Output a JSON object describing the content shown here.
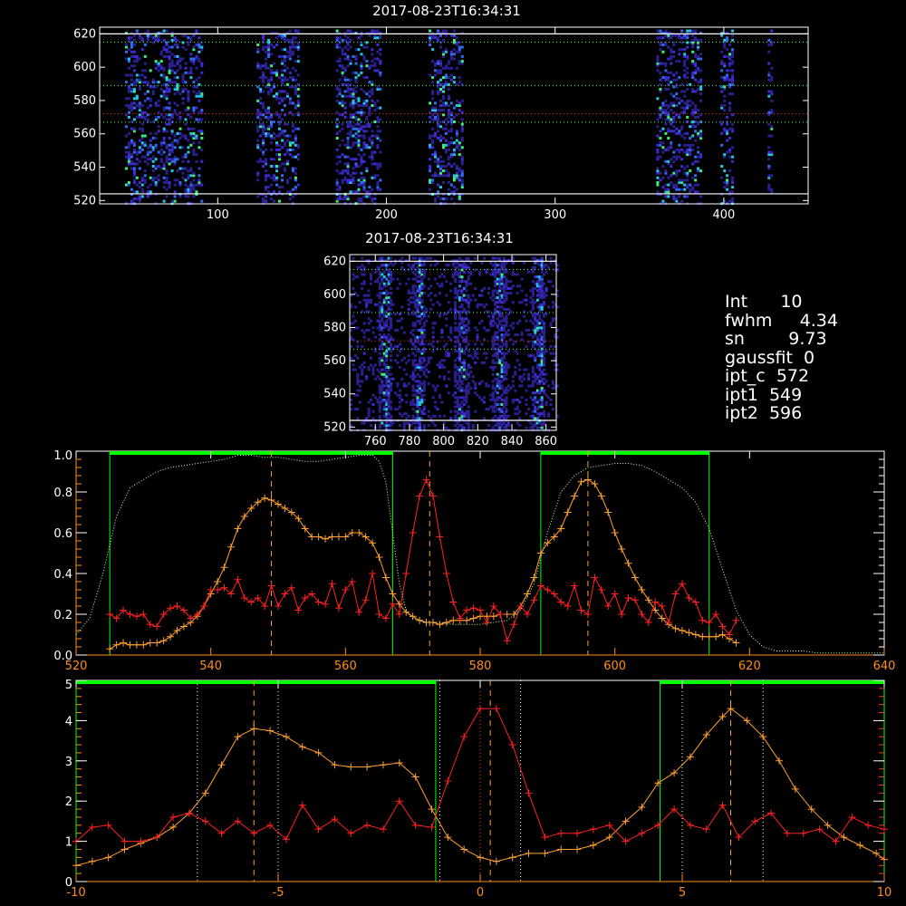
{
  "info": {
    "int": "Int      10",
    "fwhm": "fwhm     4.34",
    "sn": "sn        9.73",
    "gaussfit": "gaussfit  0",
    "ipt_c": "ipt_c  572",
    "ipt1": "ipt1  549",
    "ipt2": "ipt2  596"
  },
  "colors": {
    "background": "#000000",
    "profile": "#ff2020",
    "summed": "#ffa030",
    "transmission": "#00ff40",
    "fit_window": "#00ff00",
    "axis_orange": "#ff8c1a"
  },
  "chart_data": [
    {
      "type": "heatmap",
      "title": "2017-08-23T16:34:31",
      "xlim": [
        30,
        450
      ],
      "ylim": [
        518,
        624
      ],
      "x_ticks": [
        "100",
        "200",
        "300",
        "400"
      ],
      "y_ticks": [
        "520",
        "540",
        "560",
        "580",
        "600",
        "620"
      ],
      "bright_columns": [
        [
          45,
          90
        ],
        [
          123,
          147
        ],
        [
          170,
          196
        ],
        [
          225,
          245
        ],
        [
          360,
          386
        ],
        [
          398,
          405
        ],
        [
          426,
          429
        ]
      ],
      "hlines_white": [
        524,
        620
      ],
      "hlines_dotted": [
        567,
        589,
        615
      ],
      "hline_red": 572
    },
    {
      "type": "heatmap",
      "title": "2017-08-23T16:34:31",
      "xlim": [
        745,
        866
      ],
      "ylim": [
        518,
        624
      ],
      "x_ticks": [
        "760",
        "780",
        "800",
        "820",
        "840",
        "860"
      ],
      "y_ticks": [
        "520",
        "540",
        "560",
        "580",
        "600",
        "620"
      ],
      "spot_columns": [
        765,
        785,
        810,
        832,
        855
      ],
      "hlines_white": [
        524,
        620
      ],
      "hlines_dotted": [
        567,
        589,
        615
      ],
      "hline_red": 572
    },
    {
      "type": "line",
      "xlim": [
        520,
        640
      ],
      "ylim": [
        0,
        1.0
      ],
      "x_ticks": [
        "520",
        "540",
        "560",
        "580",
        "600",
        "620",
        "640"
      ],
      "y_ticks": [
        "0.0",
        "0.2",
        "0.4",
        "0.6",
        "0.8",
        "1.0"
      ],
      "vlines_dashed": [
        549,
        572.5,
        596
      ],
      "fit_windows": [
        [
          525,
          567
        ],
        [
          589,
          614
        ]
      ],
      "series": [
        {
          "role": "summed",
          "x": [
            525,
            526,
            527,
            528,
            529,
            530,
            531,
            532,
            533,
            534,
            535,
            536,
            537,
            538,
            539,
            540,
            541,
            542,
            543,
            544,
            545,
            546,
            547,
            548,
            549,
            550,
            551,
            552,
            553,
            554,
            555,
            556,
            557,
            558,
            559,
            560,
            561,
            562,
            563,
            564,
            565,
            566,
            567,
            568,
            569,
            570,
            571,
            572,
            573,
            574,
            575,
            576,
            577,
            578,
            579,
            580,
            581,
            582,
            583,
            584,
            585,
            586,
            587,
            588,
            589,
            590,
            591,
            592,
            593,
            594,
            595,
            596,
            597,
            598,
            599,
            600,
            601,
            602,
            603,
            604,
            605,
            606,
            607,
            608,
            609,
            610,
            611,
            612,
            613,
            614,
            615,
            616,
            617,
            618
          ],
          "y": [
            0.03,
            0.05,
            0.06,
            0.05,
            0.05,
            0.05,
            0.06,
            0.06,
            0.07,
            0.09,
            0.12,
            0.14,
            0.16,
            0.19,
            0.24,
            0.3,
            0.36,
            0.43,
            0.53,
            0.62,
            0.68,
            0.72,
            0.75,
            0.77,
            0.76,
            0.74,
            0.72,
            0.7,
            0.67,
            0.62,
            0.58,
            0.58,
            0.57,
            0.58,
            0.58,
            0.58,
            0.6,
            0.6,
            0.58,
            0.55,
            0.48,
            0.38,
            0.3,
            0.25,
            0.21,
            0.19,
            0.17,
            0.16,
            0.16,
            0.15,
            0.16,
            0.17,
            0.17,
            0.17,
            0.18,
            0.19,
            0.19,
            0.19,
            0.2,
            0.2,
            0.2,
            0.24,
            0.3,
            0.38,
            0.5,
            0.55,
            0.58,
            0.62,
            0.7,
            0.78,
            0.85,
            0.86,
            0.84,
            0.78,
            0.7,
            0.6,
            0.52,
            0.45,
            0.38,
            0.32,
            0.27,
            0.22,
            0.18,
            0.15,
            0.13,
            0.12,
            0.11,
            0.1,
            0.09,
            0.09,
            0.09,
            0.1,
            0.08,
            0.06
          ]
        },
        {
          "role": "profile",
          "x": [
            525,
            526,
            527,
            528,
            529,
            530,
            531,
            532,
            533,
            534,
            535,
            536,
            537,
            538,
            539,
            540,
            541,
            542,
            543,
            544,
            545,
            546,
            547,
            548,
            549,
            550,
            551,
            552,
            553,
            554,
            555,
            556,
            557,
            558,
            559,
            560,
            561,
            562,
            563,
            564,
            565,
            566,
            567,
            568,
            569,
            570,
            571,
            572,
            573,
            574,
            575,
            576,
            577,
            578,
            579,
            580,
            581,
            582,
            583,
            584,
            585,
            586,
            587,
            588,
            589,
            590,
            591,
            592,
            593,
            594,
            595,
            596,
            597,
            598,
            599,
            600,
            601,
            602,
            603,
            604,
            605,
            606,
            607,
            608,
            609,
            610,
            611,
            612,
            613,
            614,
            615,
            616,
            617,
            618
          ],
          "y": [
            0.2,
            0.18,
            0.22,
            0.2,
            0.19,
            0.2,
            0.15,
            0.14,
            0.2,
            0.23,
            0.24,
            0.22,
            0.18,
            0.2,
            0.24,
            0.32,
            0.32,
            0.33,
            0.3,
            0.37,
            0.28,
            0.26,
            0.28,
            0.24,
            0.34,
            0.24,
            0.3,
            0.33,
            0.22,
            0.28,
            0.3,
            0.26,
            0.25,
            0.35,
            0.23,
            0.32,
            0.36,
            0.21,
            0.27,
            0.4,
            0.2,
            0.18,
            0.25,
            0.2,
            0.4,
            0.6,
            0.78,
            0.86,
            0.78,
            0.58,
            0.4,
            0.26,
            0.18,
            0.22,
            0.23,
            0.22,
            0.16,
            0.24,
            0.2,
            0.07,
            0.15,
            0.24,
            0.2,
            0.27,
            0.34,
            0.32,
            0.3,
            0.26,
            0.24,
            0.34,
            0.22,
            0.2,
            0.38,
            0.32,
            0.24,
            0.3,
            0.2,
            0.28,
            0.27,
            0.2,
            0.16,
            0.26,
            0.24,
            0.16,
            0.3,
            0.35,
            0.28,
            0.26,
            0.17,
            0.16,
            0.2,
            0.14,
            0.1,
            0.17
          ]
        },
        {
          "role": "transmission",
          "x": [
            520,
            522,
            524,
            526,
            528,
            530,
            532,
            534,
            536,
            538,
            540,
            542,
            544,
            546,
            548,
            550,
            552,
            554,
            556,
            558,
            560,
            562,
            564,
            565,
            566,
            567,
            568,
            569,
            570,
            572,
            574,
            576,
            578,
            580,
            582,
            584,
            586,
            588,
            590,
            592,
            594,
            596,
            598,
            600,
            602,
            604,
            606,
            608,
            610,
            612,
            614,
            616,
            618,
            620,
            622,
            624,
            626,
            628,
            630,
            635,
            640
          ],
          "y": [
            0.1,
            0.18,
            0.4,
            0.68,
            0.82,
            0.86,
            0.9,
            0.92,
            0.93,
            0.94,
            0.95,
            0.96,
            0.98,
            0.98,
            0.97,
            0.97,
            0.96,
            0.95,
            0.95,
            0.96,
            0.97,
            0.98,
            0.98,
            0.95,
            0.85,
            0.6,
            0.35,
            0.22,
            0.18,
            0.16,
            0.16,
            0.15,
            0.15,
            0.15,
            0.16,
            0.17,
            0.22,
            0.35,
            0.6,
            0.8,
            0.88,
            0.92,
            0.93,
            0.94,
            0.94,
            0.93,
            0.9,
            0.86,
            0.82,
            0.75,
            0.62,
            0.42,
            0.22,
            0.1,
            0.04,
            0.02,
            0.02,
            0.02,
            0.01,
            0.01,
            0.01
          ]
        }
      ]
    },
    {
      "type": "line",
      "xlim": [
        -10,
        10
      ],
      "ylim": [
        0,
        5
      ],
      "x_ticks": [
        "-10",
        "-5",
        "0",
        "5",
        "10"
      ],
      "y_ticks": [
        "0",
        "1",
        "2",
        "3",
        "4",
        "5"
      ],
      "vlines_dotted": [
        -7,
        -5,
        -1,
        1,
        5,
        7
      ],
      "vlines_dashed": [
        -5.6,
        0.25,
        6.2
      ],
      "vline_red_dotted": 0,
      "fit_windows": [
        [
          -10,
          -1.1
        ],
        [
          4.45,
          10
        ]
      ],
      "series": [
        {
          "role": "summed",
          "x": [
            -10,
            -9.6,
            -9.2,
            -8.8,
            -8.4,
            -8,
            -7.6,
            -7.2,
            -6.8,
            -6.4,
            -6,
            -5.6,
            -5.2,
            -4.8,
            -4.4,
            -4,
            -3.6,
            -3.2,
            -2.8,
            -2.4,
            -2,
            -1.6,
            -1.2,
            -0.8,
            -0.4,
            0,
            0.4,
            0.8,
            1.2,
            1.6,
            2,
            2.4,
            2.8,
            3.2,
            3.6,
            4,
            4.4,
            4.8,
            5.2,
            5.6,
            6,
            6.2,
            6.6,
            7,
            7.4,
            7.8,
            8.2,
            8.6,
            9,
            9.4,
            9.8,
            10
          ],
          "y": [
            0.4,
            0.5,
            0.6,
            0.8,
            0.95,
            1.1,
            1.35,
            1.7,
            2.2,
            2.9,
            3.6,
            3.8,
            3.75,
            3.6,
            3.35,
            3.2,
            2.9,
            2.85,
            2.85,
            2.9,
            2.95,
            2.6,
            1.8,
            1.1,
            0.8,
            0.6,
            0.5,
            0.6,
            0.7,
            0.7,
            0.8,
            0.8,
            0.9,
            1.1,
            1.5,
            1.85,
            2.45,
            2.7,
            3.1,
            3.65,
            4.1,
            4.3,
            4.0,
            3.6,
            3.0,
            2.3,
            1.8,
            1.4,
            1.1,
            0.9,
            0.7,
            0.55
          ]
        },
        {
          "role": "profile",
          "x": [
            -10,
            -9.6,
            -9.2,
            -8.8,
            -8.4,
            -8,
            -7.6,
            -7.2,
            -6.8,
            -6.4,
            -6,
            -5.6,
            -5.2,
            -4.8,
            -4.4,
            -4,
            -3.6,
            -3.2,
            -2.8,
            -2.4,
            -2,
            -1.6,
            -1.2,
            -0.8,
            -0.4,
            0,
            0.4,
            0.8,
            1.2,
            1.6,
            2,
            2.4,
            2.8,
            3.2,
            3.6,
            4,
            4.4,
            4.8,
            5.2,
            5.6,
            6,
            6.4,
            6.8,
            7.2,
            7.6,
            8,
            8.4,
            8.8,
            9.2,
            9.6,
            10
          ],
          "y": [
            1.0,
            1.35,
            1.4,
            1.0,
            1.0,
            1.1,
            1.6,
            1.7,
            1.5,
            1.2,
            1.5,
            1.2,
            1.4,
            1.05,
            1.9,
            1.3,
            1.55,
            1.2,
            1.4,
            1.3,
            2.0,
            1.4,
            1.35,
            2.5,
            3.6,
            4.3,
            4.3,
            3.4,
            2.2,
            1.1,
            1.2,
            1.2,
            1.3,
            1.4,
            1.0,
            1.2,
            1.4,
            1.8,
            1.4,
            1.3,
            1.9,
            1.1,
            1.5,
            1.7,
            1.2,
            1.2,
            1.3,
            1.0,
            1.6,
            1.4,
            1.3
          ]
        }
      ]
    }
  ]
}
